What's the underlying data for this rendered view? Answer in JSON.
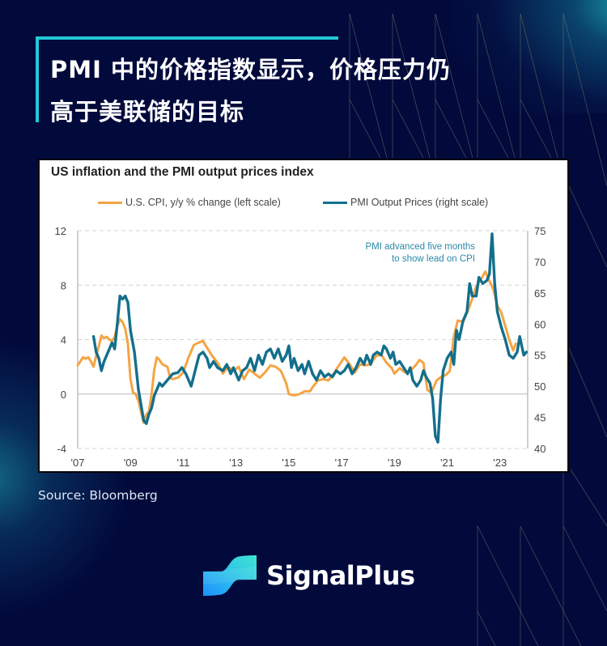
{
  "header": {
    "title_line1": "PMI 中的价格指数显示，价格压力仍",
    "title_line2": "高于美联储的目标",
    "accent_color": "#22c8d6"
  },
  "footer": {
    "source": "Source: Bloomberg",
    "brand": "SignalPlus"
  },
  "colors": {
    "background": "#020a3c",
    "cpi": "#f5a443",
    "pmi": "#136f8c",
    "annotation": "#2a8aa8"
  },
  "chart_data": {
    "type": "line",
    "title": "US inflation and the PMI output prices index",
    "legend": [
      {
        "name": "U.S. CPI, y/y % change (left scale)",
        "color": "#f5a443"
      },
      {
        "name": "PMI Output Prices (right scale)",
        "color": "#136f8c"
      }
    ],
    "legend_position": "top",
    "annotation": [
      "PMI advanced five months",
      "to show lead on CPI"
    ],
    "xlabel": "",
    "ylabel_left": "",
    "ylabel_right": "",
    "x_ticks": [
      "'07",
      "'09",
      "'11",
      "'13",
      "'15",
      "'17",
      "'19",
      "'21",
      "'23"
    ],
    "x_tick_years": [
      2007,
      2009,
      2011,
      2013,
      2015,
      2017,
      2019,
      2021,
      2023
    ],
    "xlim": [
      2007.0,
      2024.05
    ],
    "y_left_ticks": [
      "12",
      "8",
      "4",
      "0",
      "-4"
    ],
    "y_left_tick_values": [
      12,
      8,
      4,
      0,
      -4
    ],
    "ylim_left": [
      -4,
      12
    ],
    "y_right_ticks": [
      "75",
      "70",
      "65",
      "60",
      "55",
      "50",
      "45",
      "40"
    ],
    "y_right_tick_values": [
      75,
      70,
      65,
      60,
      55,
      50,
      45,
      40
    ],
    "ylim_right": [
      40,
      75
    ],
    "grid": "horizontal dashed at left-scale 4, 8, 12, -4; solid line at 0",
    "series": [
      {
        "name": "U.S. CPI, y/y % change (left scale)",
        "axis": "left",
        "points": [
          [
            2007.0,
            2.1
          ],
          [
            2007.1,
            2.4
          ],
          [
            2007.2,
            2.7
          ],
          [
            2007.3,
            2.6
          ],
          [
            2007.4,
            2.7
          ],
          [
            2007.5,
            2.4
          ],
          [
            2007.6,
            2.0
          ],
          [
            2007.7,
            2.8
          ],
          [
            2007.8,
            3.5
          ],
          [
            2007.9,
            4.3
          ],
          [
            2008.0,
            4.1
          ],
          [
            2008.1,
            4.2
          ],
          [
            2008.2,
            4.0
          ],
          [
            2008.3,
            3.9
          ],
          [
            2008.4,
            4.2
          ],
          [
            2008.5,
            5.0
          ],
          [
            2008.6,
            5.5
          ],
          [
            2008.7,
            5.3
          ],
          [
            2008.8,
            4.8
          ],
          [
            2008.9,
            3.7
          ],
          [
            2009.0,
            1.1
          ],
          [
            2009.1,
            0.1
          ],
          [
            2009.2,
            0.0
          ],
          [
            2009.3,
            -0.5
          ],
          [
            2009.4,
            -1.3
          ],
          [
            2009.5,
            -2.1
          ],
          [
            2009.6,
            -1.5
          ],
          [
            2009.7,
            -1.3
          ],
          [
            2009.8,
            0.0
          ],
          [
            2009.9,
            1.8
          ],
          [
            2010.0,
            2.7
          ],
          [
            2010.1,
            2.5
          ],
          [
            2010.2,
            2.2
          ],
          [
            2010.3,
            2.1
          ],
          [
            2010.4,
            2.0
          ],
          [
            2010.5,
            1.2
          ],
          [
            2010.6,
            1.1
          ],
          [
            2010.8,
            1.2
          ],
          [
            2011.0,
            1.6
          ],
          [
            2011.2,
            2.7
          ],
          [
            2011.4,
            3.6
          ],
          [
            2011.6,
            3.8
          ],
          [
            2011.75,
            3.9
          ],
          [
            2011.9,
            3.4
          ],
          [
            2012.1,
            2.8
          ],
          [
            2012.3,
            2.3
          ],
          [
            2012.5,
            1.5
          ],
          [
            2012.7,
            2.0
          ],
          [
            2012.9,
            1.7
          ],
          [
            2013.1,
            2.0
          ],
          [
            2013.3,
            1.1
          ],
          [
            2013.5,
            1.8
          ],
          [
            2013.7,
            1.5
          ],
          [
            2013.9,
            1.2
          ],
          [
            2014.1,
            1.6
          ],
          [
            2014.3,
            2.1
          ],
          [
            2014.5,
            2.0
          ],
          [
            2014.7,
            1.7
          ],
          [
            2014.9,
            0.8
          ],
          [
            2015.0,
            0.0
          ],
          [
            2015.2,
            -0.1
          ],
          [
            2015.4,
            0.0
          ],
          [
            2015.6,
            0.2
          ],
          [
            2015.8,
            0.2
          ],
          [
            2015.9,
            0.5
          ],
          [
            2016.1,
            1.0
          ],
          [
            2016.3,
            1.1
          ],
          [
            2016.5,
            1.0
          ],
          [
            2016.7,
            1.5
          ],
          [
            2016.9,
            2.1
          ],
          [
            2017.1,
            2.7
          ],
          [
            2017.3,
            2.2
          ],
          [
            2017.5,
            1.6
          ],
          [
            2017.7,
            2.2
          ],
          [
            2017.9,
            2.1
          ],
          [
            2018.1,
            2.2
          ],
          [
            2018.3,
            2.8
          ],
          [
            2018.5,
            2.9
          ],
          [
            2018.7,
            2.3
          ],
          [
            2018.9,
            1.9
          ],
          [
            2019.0,
            1.5
          ],
          [
            2019.2,
            1.9
          ],
          [
            2019.4,
            1.6
          ],
          [
            2019.6,
            1.7
          ],
          [
            2019.8,
            2.1
          ],
          [
            2019.95,
            2.5
          ],
          [
            2020.1,
            2.3
          ],
          [
            2020.25,
            0.3
          ],
          [
            2020.4,
            0.1
          ],
          [
            2020.6,
            1.0
          ],
          [
            2020.8,
            1.3
          ],
          [
            2020.95,
            1.4
          ],
          [
            2021.1,
            1.7
          ],
          [
            2021.25,
            4.2
          ],
          [
            2021.4,
            5.4
          ],
          [
            2021.6,
            5.3
          ],
          [
            2021.8,
            6.2
          ],
          [
            2021.95,
            7.0
          ],
          [
            2022.1,
            7.9
          ],
          [
            2022.3,
            8.5
          ],
          [
            2022.45,
            9.0
          ],
          [
            2022.6,
            8.3
          ],
          [
            2022.75,
            7.7
          ],
          [
            2022.9,
            6.5
          ],
          [
            2023.05,
            6.0
          ],
          [
            2023.2,
            5.0
          ],
          [
            2023.35,
            4.0
          ],
          [
            2023.5,
            3.2
          ],
          [
            2023.6,
            3.7
          ]
        ]
      },
      {
        "name": "PMI Output Prices (right scale)",
        "axis": "right",
        "points": [
          [
            2007.6,
            58.0
          ],
          [
            2007.7,
            55.5
          ],
          [
            2007.8,
            54.5
          ],
          [
            2007.9,
            52.5
          ],
          [
            2008.0,
            54.0
          ],
          [
            2008.15,
            55.5
          ],
          [
            2008.3,
            57.0
          ],
          [
            2008.4,
            56.0
          ],
          [
            2008.5,
            60.0
          ],
          [
            2008.6,
            64.5
          ],
          [
            2008.7,
            64.0
          ],
          [
            2008.8,
            64.5
          ],
          [
            2008.9,
            63.5
          ],
          [
            2009.0,
            59.0
          ],
          [
            2009.15,
            55.5
          ],
          [
            2009.3,
            49.5
          ],
          [
            2009.4,
            47.0
          ],
          [
            2009.5,
            44.5
          ],
          [
            2009.6,
            44.0
          ],
          [
            2009.7,
            45.5
          ],
          [
            2009.8,
            46.5
          ],
          [
            2009.9,
            48.5
          ],
          [
            2010.1,
            50.5
          ],
          [
            2010.2,
            50.0
          ],
          [
            2010.4,
            51.0
          ],
          [
            2010.6,
            52.0
          ],
          [
            2010.8,
            52.2
          ],
          [
            2010.95,
            53.0
          ],
          [
            2011.1,
            52.0
          ],
          [
            2011.2,
            51.0
          ],
          [
            2011.3,
            50.0
          ],
          [
            2011.45,
            52.5
          ],
          [
            2011.6,
            55.0
          ],
          [
            2011.75,
            55.5
          ],
          [
            2011.9,
            54.5
          ],
          [
            2012.0,
            53.0
          ],
          [
            2012.15,
            54.0
          ],
          [
            2012.3,
            53.0
          ],
          [
            2012.5,
            52.5
          ],
          [
            2012.65,
            53.5
          ],
          [
            2012.8,
            52.0
          ],
          [
            2012.9,
            53.0
          ],
          [
            2013.1,
            51.0
          ],
          [
            2013.25,
            52.5
          ],
          [
            2013.4,
            53.0
          ],
          [
            2013.55,
            54.5
          ],
          [
            2013.7,
            52.5
          ],
          [
            2013.85,
            55.0
          ],
          [
            2014.0,
            53.5
          ],
          [
            2014.15,
            55.5
          ],
          [
            2014.3,
            56.0
          ],
          [
            2014.45,
            54.5
          ],
          [
            2014.6,
            56.0
          ],
          [
            2014.75,
            54.0
          ],
          [
            2014.9,
            55.0
          ],
          [
            2015.0,
            56.5
          ],
          [
            2015.1,
            53.0
          ],
          [
            2015.2,
            54.5
          ],
          [
            2015.35,
            52.5
          ],
          [
            2015.5,
            53.5
          ],
          [
            2015.6,
            52.0
          ],
          [
            2015.75,
            54.0
          ],
          [
            2015.9,
            52.0
          ],
          [
            2016.05,
            51.0
          ],
          [
            2016.2,
            52.5
          ],
          [
            2016.35,
            51.5
          ],
          [
            2016.5,
            52.0
          ],
          [
            2016.65,
            51.5
          ],
          [
            2016.8,
            52.5
          ],
          [
            2016.95,
            52.0
          ],
          [
            2017.1,
            52.5
          ],
          [
            2017.25,
            53.5
          ],
          [
            2017.4,
            52.0
          ],
          [
            2017.55,
            53.0
          ],
          [
            2017.7,
            54.5
          ],
          [
            2017.85,
            53.5
          ],
          [
            2017.95,
            55.0
          ],
          [
            2018.1,
            53.5
          ],
          [
            2018.2,
            55.0
          ],
          [
            2018.35,
            55.5
          ],
          [
            2018.5,
            55.0
          ],
          [
            2018.6,
            56.5
          ],
          [
            2018.7,
            56.0
          ],
          [
            2018.85,
            54.5
          ],
          [
            2018.95,
            55.5
          ],
          [
            2019.05,
            53.5
          ],
          [
            2019.2,
            54.0
          ],
          [
            2019.35,
            53.0
          ],
          [
            2019.5,
            52.0
          ],
          [
            2019.6,
            53.0
          ],
          [
            2019.7,
            51.0
          ],
          [
            2019.85,
            50.0
          ],
          [
            2020.0,
            51.0
          ],
          [
            2020.1,
            52.5
          ],
          [
            2020.2,
            51.5
          ],
          [
            2020.35,
            50.5
          ],
          [
            2020.45,
            48.0
          ],
          [
            2020.55,
            42.0
          ],
          [
            2020.65,
            41.0
          ],
          [
            2020.75,
            48.0
          ],
          [
            2020.85,
            52.5
          ],
          [
            2021.0,
            54.5
          ],
          [
            2021.15,
            55.5
          ],
          [
            2021.25,
            53.5
          ],
          [
            2021.35,
            59.0
          ],
          [
            2021.45,
            57.5
          ],
          [
            2021.6,
            60.5
          ],
          [
            2021.75,
            62.0
          ],
          [
            2021.85,
            66.5
          ],
          [
            2021.95,
            64.5
          ],
          [
            2022.1,
            64.5
          ],
          [
            2022.2,
            67.5
          ],
          [
            2022.35,
            66.5
          ],
          [
            2022.5,
            67.0
          ],
          [
            2022.6,
            68.0
          ],
          [
            2022.7,
            74.5
          ],
          [
            2022.8,
            66.5
          ],
          [
            2022.9,
            62.0
          ],
          [
            2023.05,
            59.5
          ],
          [
            2023.2,
            57.5
          ],
          [
            2023.35,
            55.0
          ],
          [
            2023.5,
            54.5
          ],
          [
            2023.65,
            55.5
          ],
          [
            2023.75,
            58.0
          ],
          [
            2023.9,
            55.0
          ],
          [
            2024.0,
            55.5
          ]
        ]
      }
    ]
  }
}
